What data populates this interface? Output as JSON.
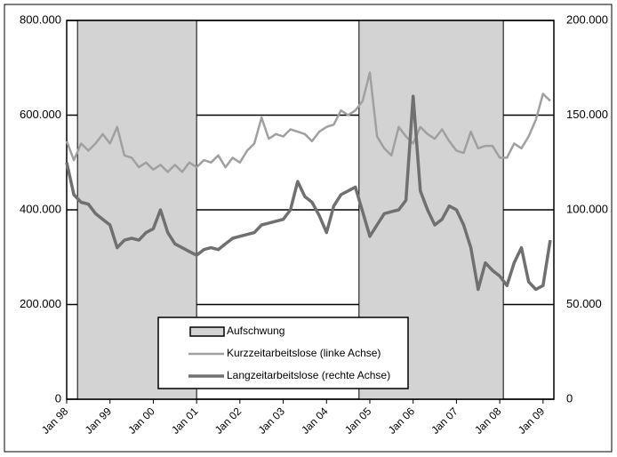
{
  "chart_data": {
    "type": "line",
    "categories": [
      "Jan 98",
      null,
      null,
      null,
      null,
      null,
      "Jan 99",
      null,
      null,
      null,
      null,
      null,
      "Jan 00",
      null,
      null,
      null,
      null,
      null,
      "Jan 01",
      null,
      null,
      null,
      null,
      null,
      "Jan 02",
      null,
      null,
      null,
      null,
      null,
      "Jan 03",
      null,
      null,
      null,
      null,
      null,
      "Jan 04",
      null,
      null,
      null,
      null,
      null,
      "Jan 05",
      null,
      null,
      null,
      null,
      null,
      "Jan 06",
      null,
      null,
      null,
      null,
      null,
      "Jan 07",
      null,
      null,
      null,
      null,
      null,
      "Jan 08",
      null,
      null,
      null,
      null,
      null,
      "Jan 09",
      null
    ],
    "bands": {
      "name": "Aufschwung",
      "color": "#d3d3d3",
      "ranges": [
        [
          1.5,
          18
        ],
        [
          40.5,
          60.5
        ]
      ]
    },
    "series": [
      {
        "name": "Kurzzeitarbeitslose (linke Achse)",
        "color": "#a0a0a0",
        "axis": "y",
        "values": [
          545000,
          505000,
          540000,
          525000,
          540000,
          560000,
          540000,
          575000,
          515000,
          510000,
          490000,
          500000,
          485000,
          495000,
          480000,
          495000,
          480000,
          500000,
          490000,
          505000,
          500000,
          515000,
          490000,
          510000,
          500000,
          525000,
          540000,
          595000,
          550000,
          560000,
          555000,
          570000,
          565000,
          560000,
          545000,
          565000,
          575000,
          580000,
          610000,
          600000,
          610000,
          630000,
          690000,
          555000,
          530000,
          515000,
          575000,
          555000,
          540000,
          575000,
          560000,
          550000,
          570000,
          545000,
          525000,
          520000,
          565000,
          530000,
          535000,
          535000,
          510000,
          510000,
          540000,
          530000,
          555000,
          590000,
          645000,
          630000
        ]
      },
      {
        "name": "Langzeitarbeitslose (rechte Achse)",
        "color": "#707070",
        "axis": "y2",
        "values": [
          125000,
          108000,
          104000,
          103000,
          98000,
          95000,
          92000,
          80000,
          84000,
          85000,
          84000,
          88000,
          90000,
          100000,
          88000,
          82000,
          80000,
          78000,
          76000,
          79000,
          80000,
          79000,
          82000,
          85000,
          86000,
          87000,
          88000,
          92000,
          93000,
          94000,
          95000,
          100000,
          115000,
          107000,
          104000,
          97000,
          88000,
          102000,
          108000,
          110000,
          112000,
          99000,
          86000,
          92000,
          98000,
          99000,
          100000,
          105000,
          160000,
          110000,
          100000,
          92000,
          95000,
          102000,
          100000,
          92000,
          80000,
          58000,
          72000,
          68000,
          65000,
          60000,
          72000,
          80000,
          62000,
          58000,
          60000,
          84000
        ]
      }
    ],
    "ylim": [
      0,
      800000
    ],
    "yticks": [
      0,
      {
        "value": 200000,
        "label": "200.000"
      },
      {
        "value": 400000,
        "label": "400.000"
      },
      {
        "value": 600000,
        "label": "600.000"
      },
      {
        "value": 800000,
        "label": "800.000"
      }
    ],
    "y2lim": [
      0,
      200000
    ],
    "y2ticks": [
      0,
      {
        "value": 50000,
        "label": "50.000"
      },
      {
        "value": 100000,
        "label": "100.000"
      },
      {
        "value": 150000,
        "label": "150.000"
      },
      {
        "value": 200000,
        "label": "200.000"
      }
    ],
    "grid": true
  }
}
